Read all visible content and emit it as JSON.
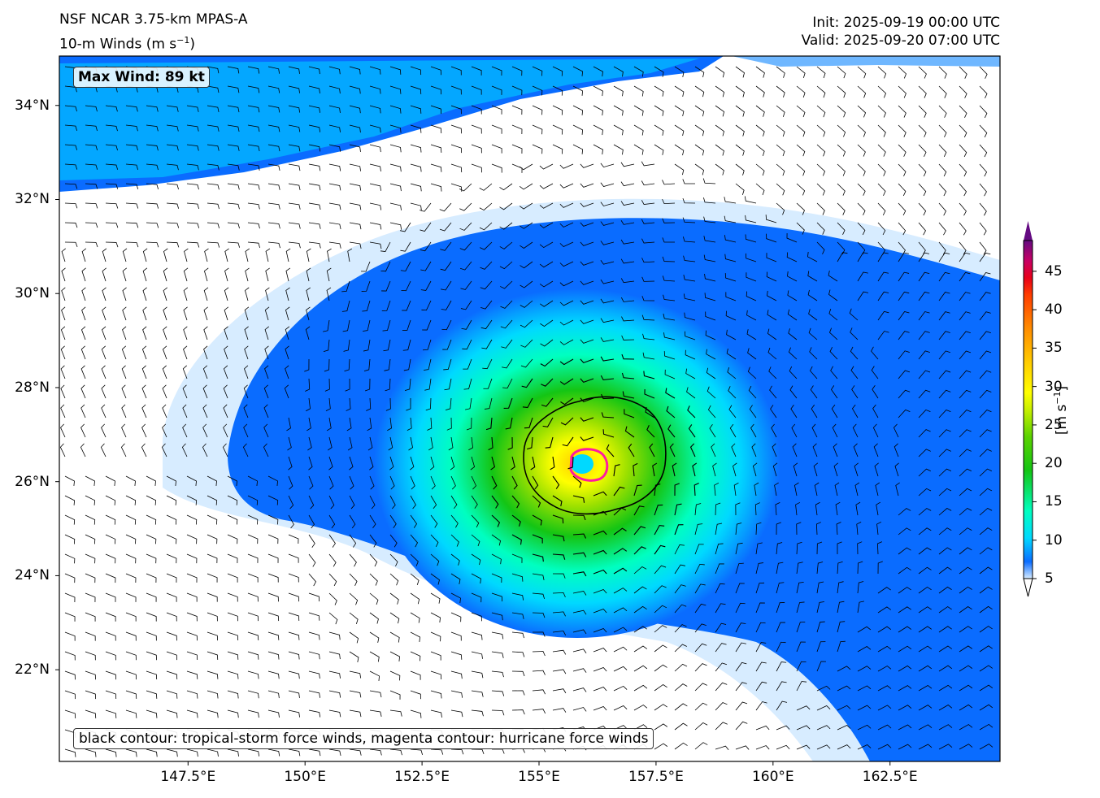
{
  "header": {
    "model": "NSF NCAR 3.75-km MPAS-A",
    "field": "10-m Winds (m s",
    "field_exp": "−1",
    "field_close": ")",
    "init": "Init: 2025-09-19 00:00 UTC",
    "valid": "Valid: 2025-09-20 07:00 UTC"
  },
  "map": {
    "lat_labels": [
      "34°N",
      "32°N",
      "30°N",
      "28°N",
      "26°N",
      "24°N",
      "22°N"
    ],
    "lat_values": [
      34,
      32,
      30,
      28,
      26,
      24,
      22
    ],
    "lon_labels": [
      "147.5°E",
      "150°E",
      "152.5°E",
      "155°E",
      "157.5°E",
      "160°E",
      "162.5°E"
    ],
    "lon_values": [
      147.5,
      150,
      152.5,
      155,
      157.5,
      160,
      162.5
    ],
    "lon_range": [
      144.75,
      164.85
    ],
    "lat_range": [
      20.05,
      35.05
    ],
    "storm_center": {
      "lon": 156.15,
      "lat": 26.35
    }
  },
  "annotations": {
    "max_wind": "Max Wind: 89 kt",
    "legend": "black contour: tropical-storm force winds, magenta contour: hurricane force winds"
  },
  "colorbar": {
    "ticks": [
      "45",
      "40",
      "35",
      "30",
      "25",
      "20",
      "15",
      "10",
      "5"
    ],
    "tick_values": [
      45,
      40,
      35,
      30,
      25,
      20,
      15,
      10,
      5
    ],
    "range": [
      5,
      49
    ],
    "unit_prefix": "[m s",
    "unit_exp": "−1",
    "unit_suffix": "]",
    "colors": [
      "#d7ecff",
      "#6fb7ff",
      "#0a6cff",
      "#00d9ff",
      "#00ffc0",
      "#14c514",
      "#5bd300",
      "#c8f000",
      "#ffff00",
      "#ffcc00",
      "#ff8c00",
      "#ff3c00",
      "#e8001a",
      "#c80064",
      "#8c008c",
      "#640a82"
    ]
  }
}
